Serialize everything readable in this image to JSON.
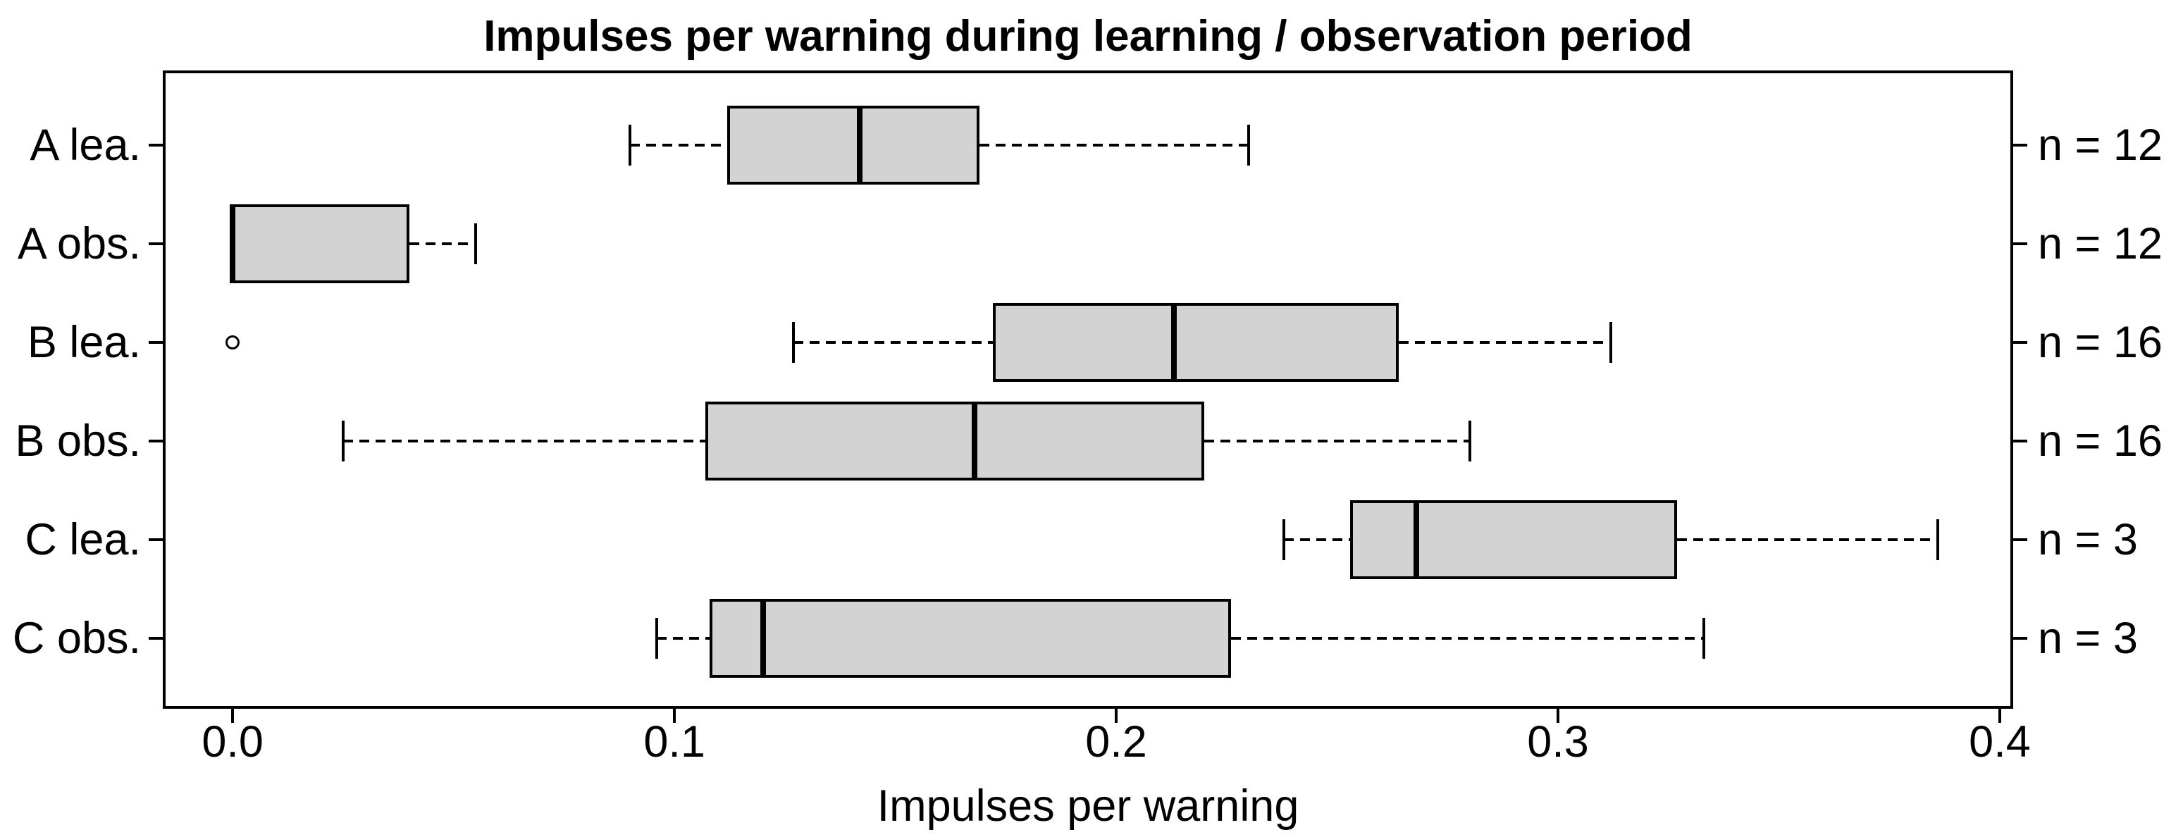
{
  "title": "Impulses per warning during learning / observation period",
  "x_axis": {
    "label": "Impulses per warning",
    "ticks": [
      {
        "value": 0.0,
        "label": "0.0"
      },
      {
        "value": 0.1,
        "label": "0.1"
      },
      {
        "value": 0.2,
        "label": "0.2"
      },
      {
        "value": 0.3,
        "label": "0.3"
      },
      {
        "value": 0.4,
        "label": "0.4"
      }
    ]
  },
  "chart_data": {
    "type": "boxplot",
    "orientation": "horizontal",
    "title": "Impulses per warning during learning / observation period",
    "xlabel": "Impulses per warning",
    "ylabel": "",
    "xlim": [
      -0.0155,
      0.4024
    ],
    "grid": false,
    "categories": [
      "A lea.",
      "A obs.",
      "B lea.",
      "B obs.",
      "C lea.",
      "C obs."
    ],
    "right_labels": [
      "n = 12",
      "n = 12",
      "n = 16",
      "n = 16",
      "n = 3",
      "n = 3"
    ],
    "boxes": [
      {
        "category": "A lea.",
        "n": 12,
        "whisker_low": 0.09,
        "q1": 0.112,
        "median": 0.142,
        "q3": 0.169,
        "whisker_high": 0.23,
        "outliers": []
      },
      {
        "category": "A obs.",
        "n": 12,
        "whisker_low": 0.0,
        "q1": 0.0,
        "median": 0.0,
        "q3": 0.04,
        "whisker_high": 0.055,
        "outliers": []
      },
      {
        "category": "B lea.",
        "n": 16,
        "whisker_low": 0.127,
        "q1": 0.172,
        "median": 0.213,
        "q3": 0.264,
        "whisker_high": 0.312,
        "outliers": [
          0.0
        ]
      },
      {
        "category": "B obs.",
        "n": 16,
        "whisker_low": 0.025,
        "q1": 0.107,
        "median": 0.168,
        "q3": 0.22,
        "whisker_high": 0.28,
        "outliers": []
      },
      {
        "category": "C lea.",
        "n": 3,
        "whisker_low": 0.238,
        "q1": 0.253,
        "median": 0.268,
        "q3": 0.327,
        "whisker_high": 0.386,
        "outliers": []
      },
      {
        "category": "C obs.",
        "n": 3,
        "whisker_low": 0.096,
        "q1": 0.108,
        "median": 0.12,
        "q3": 0.226,
        "whisker_high": 0.333,
        "outliers": []
      }
    ],
    "style": {
      "box_fill": "#d3d3d3",
      "line_color": "#000000",
      "background": "#ffffff",
      "whisker_linetype": "dashed"
    }
  }
}
